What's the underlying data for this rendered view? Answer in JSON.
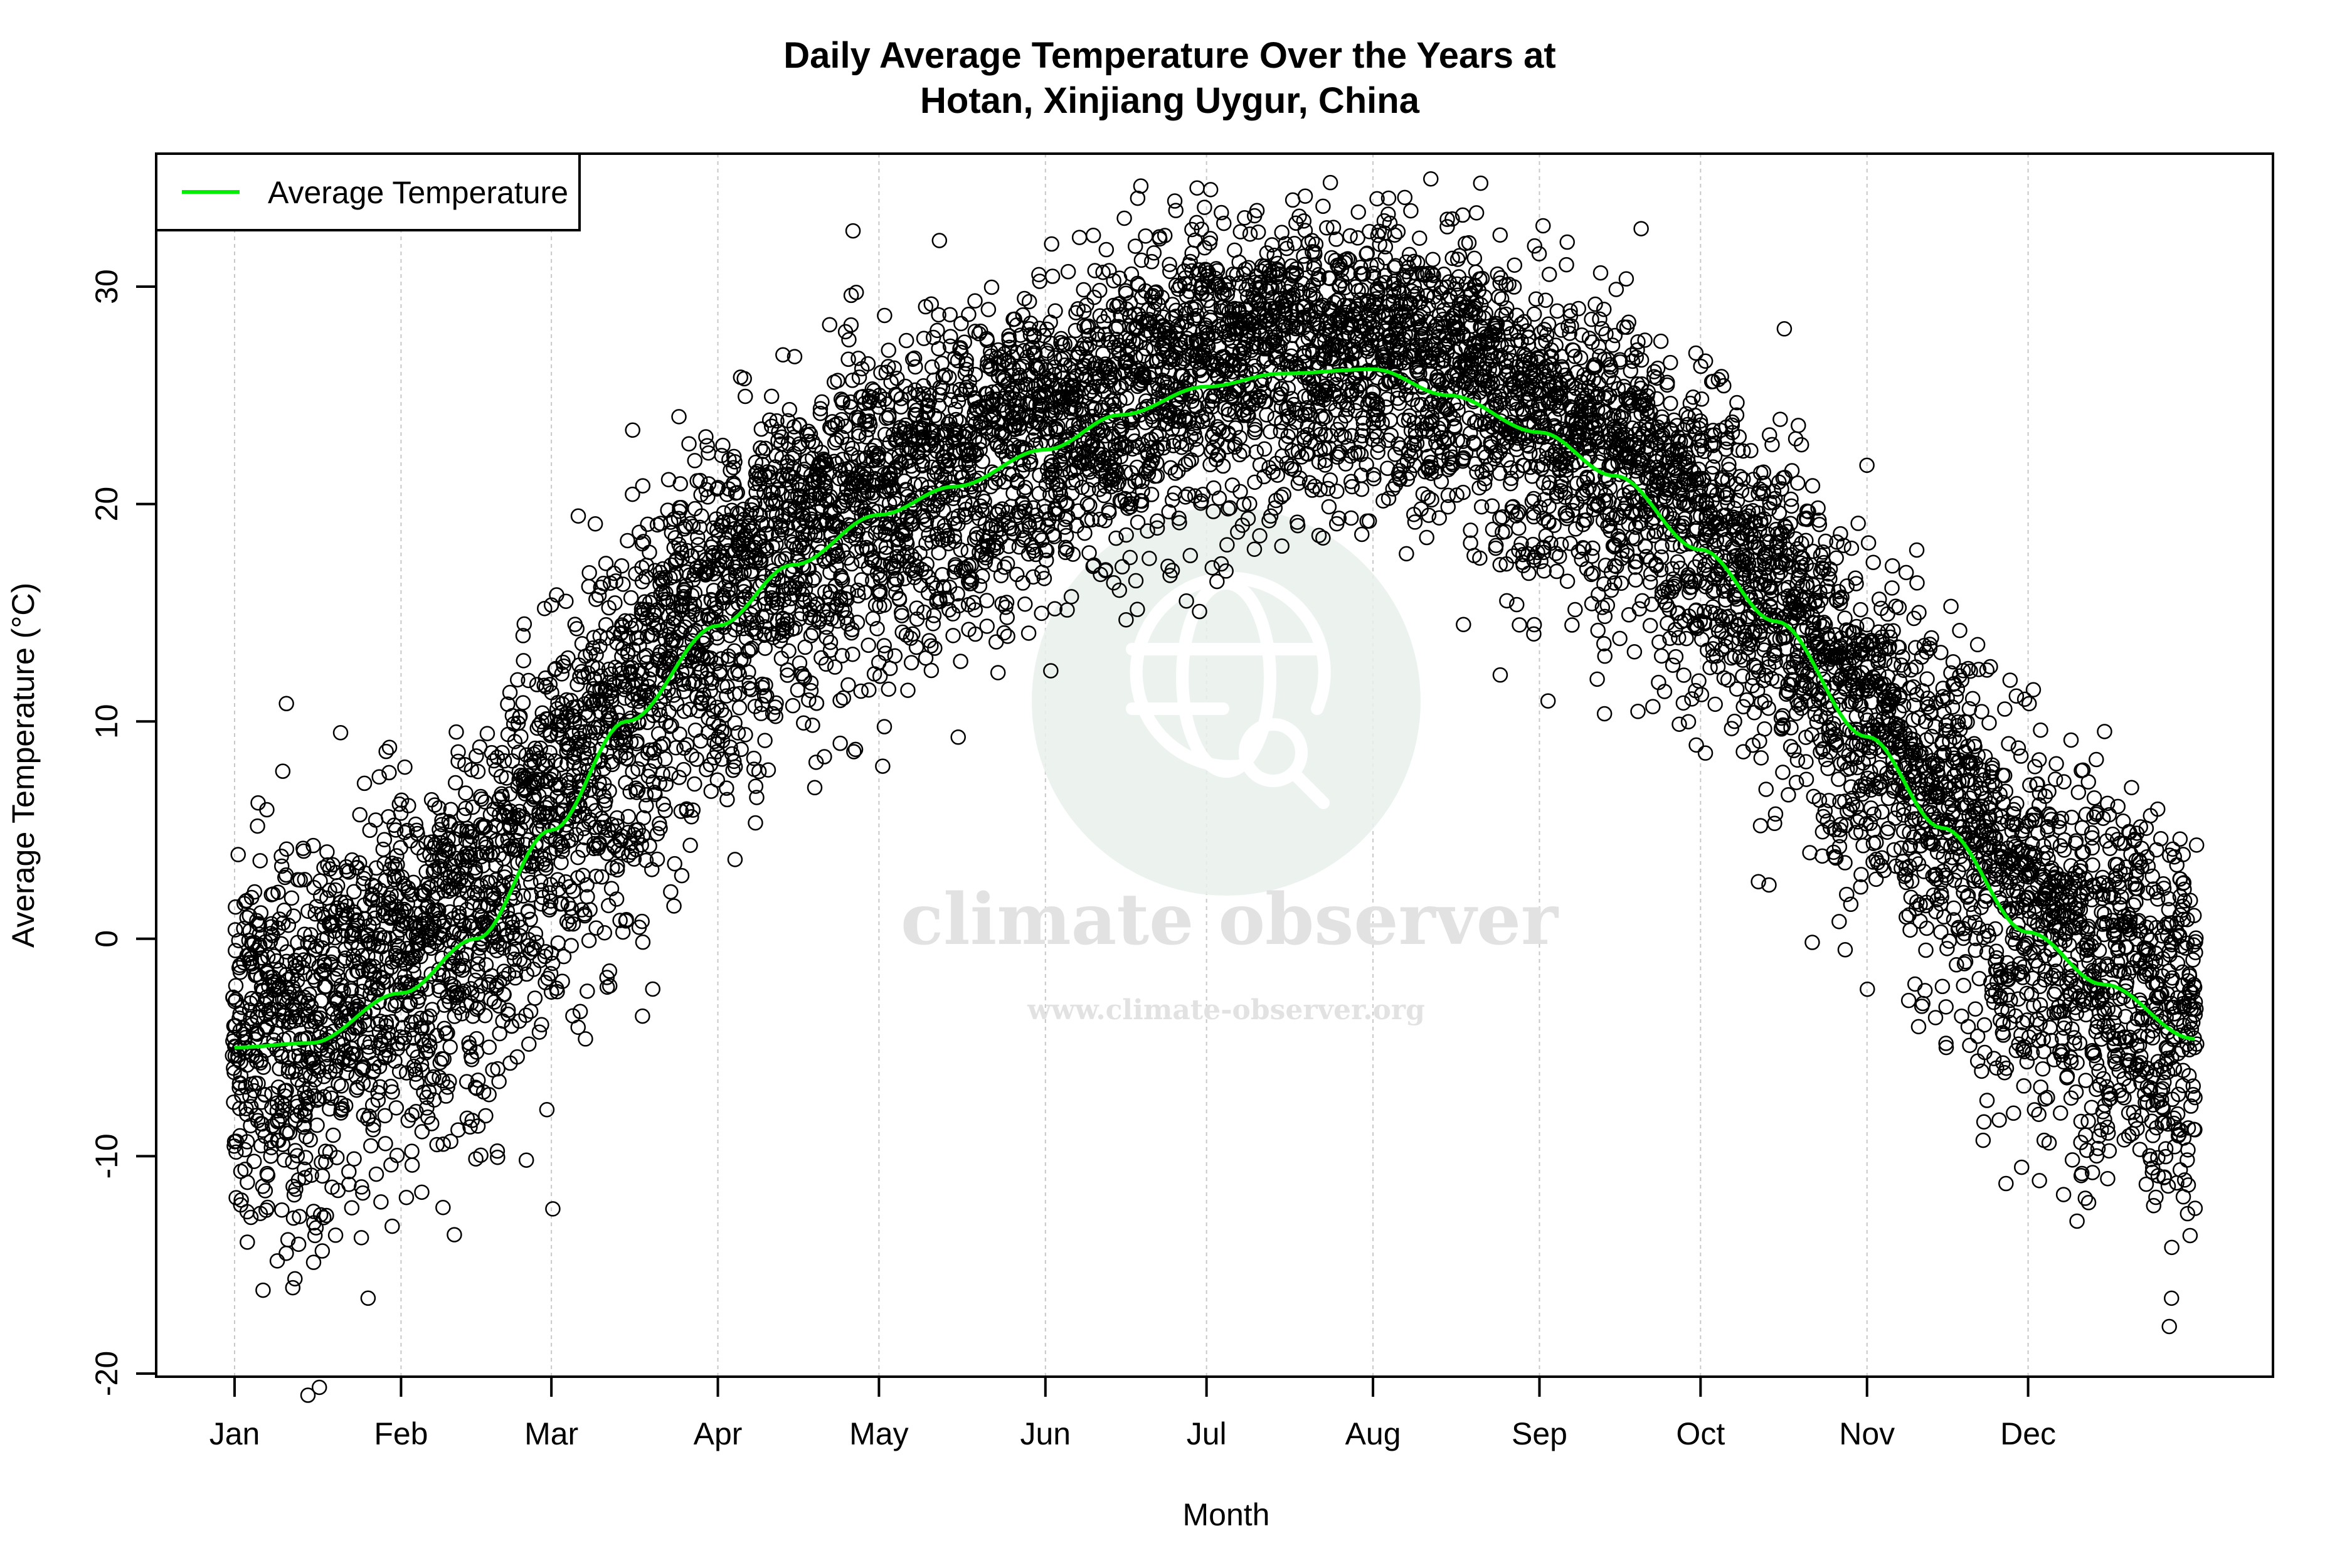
{
  "chart_data": {
    "type": "scatter",
    "title": "Daily Average Temperature Over the Years at",
    "subtitle": "Hotan, Xinjiang Uygur, China",
    "xlabel": "Month",
    "ylabel": "Average Temperature (°C)",
    "x_ticks": [
      {
        "label": "Jan",
        "day": 1
      },
      {
        "label": "Feb",
        "day": 32
      },
      {
        "label": "Mar",
        "day": 60
      },
      {
        "label": "Apr",
        "day": 91
      },
      {
        "label": "May",
        "day": 121
      },
      {
        "label": "Jun",
        "day": 152
      },
      {
        "label": "Jul",
        "day": 182
      },
      {
        "label": "Aug",
        "day": 213
      },
      {
        "label": "Sep",
        "day": 244
      },
      {
        "label": "Oct",
        "day": 274
      },
      {
        "label": "Nov",
        "day": 305
      },
      {
        "label": "Dec",
        "day": 335
      }
    ],
    "y_ticks": [
      "-20",
      "-10",
      "0",
      "10",
      "20",
      "30"
    ],
    "xlim": [
      1,
      366
    ],
    "ylim": [
      -20,
      34
    ],
    "grid": "vertical dotted at month ticks",
    "legend": {
      "placement": "top-left",
      "entries": [
        {
          "name": "Average Temperature",
          "color": "#00ee00"
        }
      ]
    },
    "point_color": "#000000",
    "average_curve": {
      "name": "Average Temperature",
      "color": "#00ee00",
      "day": [
        1,
        15,
        32,
        46,
        60,
        74,
        91,
        105,
        121,
        135,
        152,
        166,
        182,
        196,
        213,
        227,
        244,
        258,
        274,
        288,
        305,
        319,
        335,
        349,
        366
      ],
      "value": [
        -5.0,
        -4.8,
        -2.5,
        0.0,
        5.0,
        10.0,
        14.4,
        17.2,
        19.5,
        20.8,
        22.5,
        24.1,
        25.4,
        26.0,
        26.2,
        25.0,
        23.3,
        21.3,
        17.9,
        14.6,
        9.3,
        5.1,
        0.3,
        -2.1,
        -4.6
      ]
    }
  },
  "watermark": {
    "name": "climate observer",
    "url": "www.climate-observer.org"
  }
}
